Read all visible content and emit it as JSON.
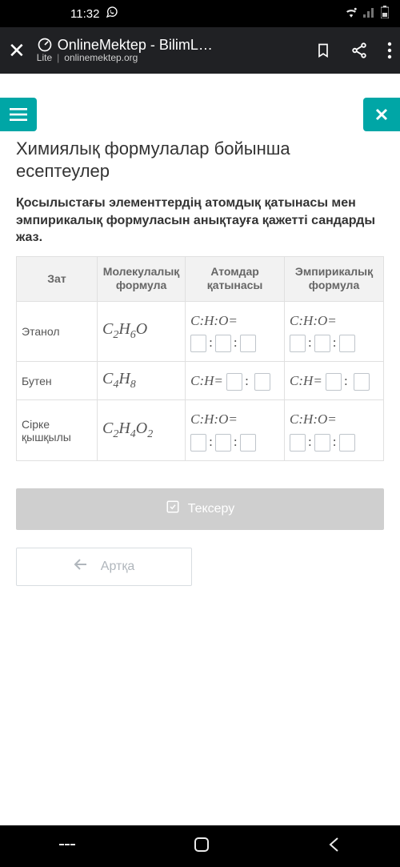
{
  "status": {
    "time": "11:32",
    "whatsapp_icon": "whatsapp"
  },
  "browser": {
    "title": "OnlineMektep - BilimL…",
    "lite_label": "Lite",
    "domain": "onlinemektep.org"
  },
  "page": {
    "title": "Химиялық формулалар бойынша есептеулер",
    "question": "Қосылыстағы элементтердің атомдық қатынасы мен эмпирикалық формуласын анықтауға қажетті сандарды жаз."
  },
  "table": {
    "headers": {
      "name": "Зат",
      "formula": "Молекулалық формула",
      "ratio": "Атомдар қатынасы",
      "empirical": "Эмпирикалық формула"
    },
    "col_widths": [
      "22%",
      "24%",
      "27%",
      "27%"
    ],
    "rows": [
      {
        "name": "Этанол",
        "formula_html": "C<sub>2</sub>H<sub>6</sub>O",
        "ratio_label": "C:H:O=",
        "empirical_label": "C:H:O=",
        "inputs": 3
      },
      {
        "name": "Бутен",
        "formula_html": "C<sub>4</sub>H<sub>8</sub>",
        "ratio_label": "C:H=",
        "empirical_label": "C:H=",
        "inputs": 2
      },
      {
        "name": "Сірке қышқылы",
        "formula_html": "C<sub>2</sub>H<sub>4</sub>O<sub>2</sub>",
        "ratio_label": "C:H:O=",
        "empirical_label": "C:H:O=",
        "inputs": 3
      }
    ]
  },
  "buttons": {
    "check": "Тексеру",
    "back": "Артқа"
  },
  "colors": {
    "teal": "#00a6a6",
    "grey_btn": "#cfcfcf",
    "border": "#e0e0e0",
    "header_bg": "#f2f2f2"
  }
}
